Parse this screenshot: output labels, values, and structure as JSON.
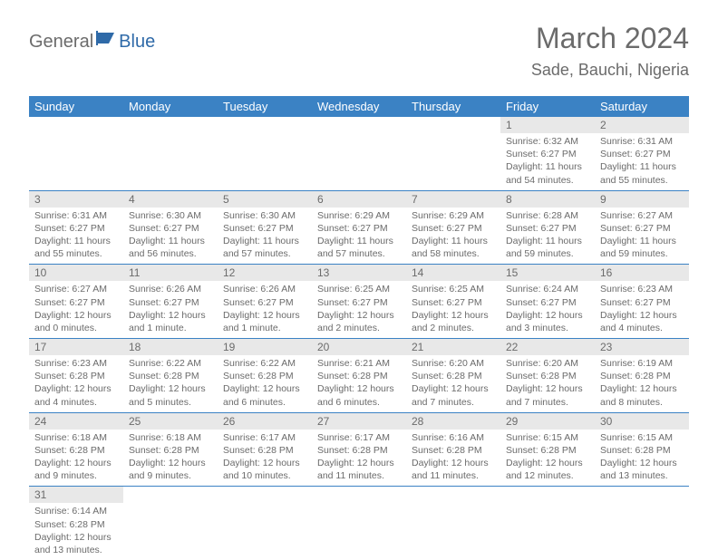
{
  "logo": {
    "part1": "General",
    "part2": "Blue"
  },
  "title": "March 2024",
  "location": "Sade, Bauchi, Nigeria",
  "colors": {
    "header_bg": "#3b82c4",
    "header_text": "#ffffff",
    "daynum_bg": "#e8e8e8",
    "text": "#6b6b6b",
    "row_border": "#3b82c4",
    "logo_accent": "#2f6aa8"
  },
  "weekdays": [
    "Sunday",
    "Monday",
    "Tuesday",
    "Wednesday",
    "Thursday",
    "Friday",
    "Saturday"
  ],
  "weeks": [
    [
      null,
      null,
      null,
      null,
      null,
      {
        "n": "1",
        "sr": "Sunrise: 6:32 AM",
        "ss": "Sunset: 6:27 PM",
        "dl": "Daylight: 11 hours and 54 minutes."
      },
      {
        "n": "2",
        "sr": "Sunrise: 6:31 AM",
        "ss": "Sunset: 6:27 PM",
        "dl": "Daylight: 11 hours and 55 minutes."
      }
    ],
    [
      {
        "n": "3",
        "sr": "Sunrise: 6:31 AM",
        "ss": "Sunset: 6:27 PM",
        "dl": "Daylight: 11 hours and 55 minutes."
      },
      {
        "n": "4",
        "sr": "Sunrise: 6:30 AM",
        "ss": "Sunset: 6:27 PM",
        "dl": "Daylight: 11 hours and 56 minutes."
      },
      {
        "n": "5",
        "sr": "Sunrise: 6:30 AM",
        "ss": "Sunset: 6:27 PM",
        "dl": "Daylight: 11 hours and 57 minutes."
      },
      {
        "n": "6",
        "sr": "Sunrise: 6:29 AM",
        "ss": "Sunset: 6:27 PM",
        "dl": "Daylight: 11 hours and 57 minutes."
      },
      {
        "n": "7",
        "sr": "Sunrise: 6:29 AM",
        "ss": "Sunset: 6:27 PM",
        "dl": "Daylight: 11 hours and 58 minutes."
      },
      {
        "n": "8",
        "sr": "Sunrise: 6:28 AM",
        "ss": "Sunset: 6:27 PM",
        "dl": "Daylight: 11 hours and 59 minutes."
      },
      {
        "n": "9",
        "sr": "Sunrise: 6:27 AM",
        "ss": "Sunset: 6:27 PM",
        "dl": "Daylight: 11 hours and 59 minutes."
      }
    ],
    [
      {
        "n": "10",
        "sr": "Sunrise: 6:27 AM",
        "ss": "Sunset: 6:27 PM",
        "dl": "Daylight: 12 hours and 0 minutes."
      },
      {
        "n": "11",
        "sr": "Sunrise: 6:26 AM",
        "ss": "Sunset: 6:27 PM",
        "dl": "Daylight: 12 hours and 1 minute."
      },
      {
        "n": "12",
        "sr": "Sunrise: 6:26 AM",
        "ss": "Sunset: 6:27 PM",
        "dl": "Daylight: 12 hours and 1 minute."
      },
      {
        "n": "13",
        "sr": "Sunrise: 6:25 AM",
        "ss": "Sunset: 6:27 PM",
        "dl": "Daylight: 12 hours and 2 minutes."
      },
      {
        "n": "14",
        "sr": "Sunrise: 6:25 AM",
        "ss": "Sunset: 6:27 PM",
        "dl": "Daylight: 12 hours and 2 minutes."
      },
      {
        "n": "15",
        "sr": "Sunrise: 6:24 AM",
        "ss": "Sunset: 6:27 PM",
        "dl": "Daylight: 12 hours and 3 minutes."
      },
      {
        "n": "16",
        "sr": "Sunrise: 6:23 AM",
        "ss": "Sunset: 6:27 PM",
        "dl": "Daylight: 12 hours and 4 minutes."
      }
    ],
    [
      {
        "n": "17",
        "sr": "Sunrise: 6:23 AM",
        "ss": "Sunset: 6:28 PM",
        "dl": "Daylight: 12 hours and 4 minutes."
      },
      {
        "n": "18",
        "sr": "Sunrise: 6:22 AM",
        "ss": "Sunset: 6:28 PM",
        "dl": "Daylight: 12 hours and 5 minutes."
      },
      {
        "n": "19",
        "sr": "Sunrise: 6:22 AM",
        "ss": "Sunset: 6:28 PM",
        "dl": "Daylight: 12 hours and 6 minutes."
      },
      {
        "n": "20",
        "sr": "Sunrise: 6:21 AM",
        "ss": "Sunset: 6:28 PM",
        "dl": "Daylight: 12 hours and 6 minutes."
      },
      {
        "n": "21",
        "sr": "Sunrise: 6:20 AM",
        "ss": "Sunset: 6:28 PM",
        "dl": "Daylight: 12 hours and 7 minutes."
      },
      {
        "n": "22",
        "sr": "Sunrise: 6:20 AM",
        "ss": "Sunset: 6:28 PM",
        "dl": "Daylight: 12 hours and 7 minutes."
      },
      {
        "n": "23",
        "sr": "Sunrise: 6:19 AM",
        "ss": "Sunset: 6:28 PM",
        "dl": "Daylight: 12 hours and 8 minutes."
      }
    ],
    [
      {
        "n": "24",
        "sr": "Sunrise: 6:18 AM",
        "ss": "Sunset: 6:28 PM",
        "dl": "Daylight: 12 hours and 9 minutes."
      },
      {
        "n": "25",
        "sr": "Sunrise: 6:18 AM",
        "ss": "Sunset: 6:28 PM",
        "dl": "Daylight: 12 hours and 9 minutes."
      },
      {
        "n": "26",
        "sr": "Sunrise: 6:17 AM",
        "ss": "Sunset: 6:28 PM",
        "dl": "Daylight: 12 hours and 10 minutes."
      },
      {
        "n": "27",
        "sr": "Sunrise: 6:17 AM",
        "ss": "Sunset: 6:28 PM",
        "dl": "Daylight: 12 hours and 11 minutes."
      },
      {
        "n": "28",
        "sr": "Sunrise: 6:16 AM",
        "ss": "Sunset: 6:28 PM",
        "dl": "Daylight: 12 hours and 11 minutes."
      },
      {
        "n": "29",
        "sr": "Sunrise: 6:15 AM",
        "ss": "Sunset: 6:28 PM",
        "dl": "Daylight: 12 hours and 12 minutes."
      },
      {
        "n": "30",
        "sr": "Sunrise: 6:15 AM",
        "ss": "Sunset: 6:28 PM",
        "dl": "Daylight: 12 hours and 13 minutes."
      }
    ],
    [
      {
        "n": "31",
        "sr": "Sunrise: 6:14 AM",
        "ss": "Sunset: 6:28 PM",
        "dl": "Daylight: 12 hours and 13 minutes."
      },
      null,
      null,
      null,
      null,
      null,
      null
    ]
  ]
}
